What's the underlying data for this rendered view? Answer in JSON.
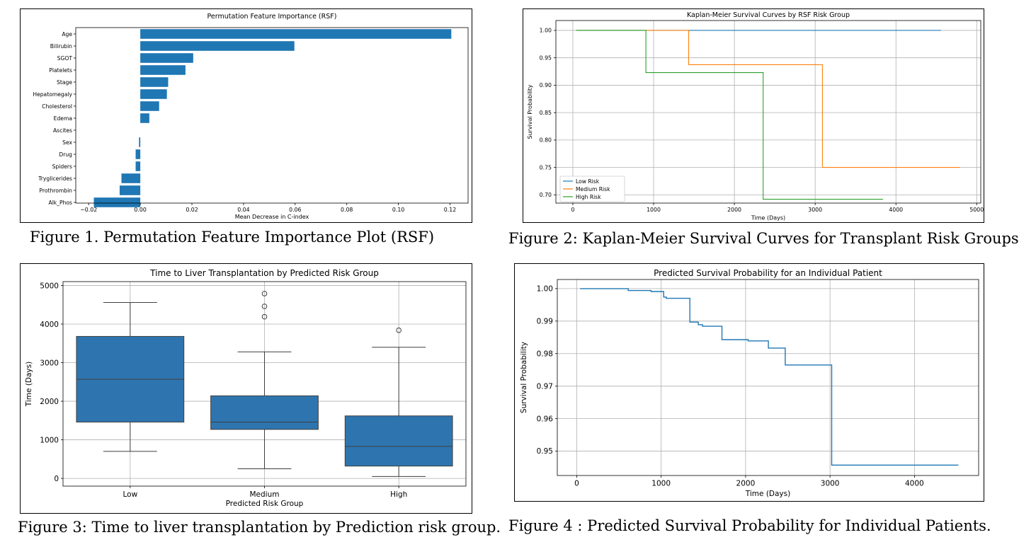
{
  "chart_data": [
    {
      "type": "bar",
      "orientation": "horizontal",
      "title": "Permutation Feature Importance (RSF)",
      "xlabel": "Mean Decrease in C-index",
      "ylabel": "",
      "xlim": [
        -0.025,
        0.127
      ],
      "xticks": [
        -0.02,
        0.0,
        0.02,
        0.04,
        0.06,
        0.08,
        0.1,
        0.12
      ],
      "xtick_labels": [
        "−0.02",
        "0.00",
        "0.02",
        "0.04",
        "0.06",
        "0.08",
        "0.10",
        "0.12"
      ],
      "categories": [
        "Age",
        "Bilirubin",
        "SGOT",
        "Platelets",
        "Stage",
        "Hepatomegaly",
        "Cholesterol",
        "Edema",
        "Ascites",
        "Sex",
        "Drug",
        "Spiders",
        "Tryglicerides",
        "Prothrombin",
        "Alk_Phos"
      ],
      "values": [
        0.1205,
        0.0597,
        0.0205,
        0.0175,
        0.0108,
        0.0103,
        0.0073,
        0.0035,
        0.0,
        -0.0005,
        -0.0018,
        -0.0018,
        -0.0073,
        -0.008,
        -0.018
      ],
      "color": "#1f77b4",
      "grid": false,
      "caption": "Figure 1. Permutation Feature Importance Plot (RSF)"
    },
    {
      "type": "line",
      "step": true,
      "title": "Kaplan-Meier Survival Curves by RSF Risk Group",
      "xlabel": "Time (Days)",
      "ylabel": "Survival Probability",
      "xlim": [
        -210,
        5050
      ],
      "ylim": [
        0.685,
        1.018
      ],
      "xticks": [
        0,
        1000,
        2000,
        3000,
        4000,
        5000
      ],
      "yticks": [
        0.7,
        0.75,
        0.8,
        0.85,
        0.9,
        0.95,
        1.0
      ],
      "ytick_labels": [
        "0.70",
        "0.75",
        "0.80",
        "0.85",
        "0.90",
        "0.95",
        "1.00"
      ],
      "grid": true,
      "legend_position": "lower-left",
      "series": [
        {
          "name": "Low Risk",
          "color": "#1f77b4",
          "x": [
            41,
            4556
          ],
          "y": [
            1.0,
            1.0
          ]
        },
        {
          "name": "Medium Risk",
          "color": "#ff7f0e",
          "x": [
            41,
            1434,
            1434,
            3090,
            3090,
            4795
          ],
          "y": [
            1.0,
            1.0,
            0.9375,
            0.9375,
            0.75,
            0.75
          ]
        },
        {
          "name": "High Risk",
          "color": "#2ca02c",
          "x": [
            41,
            904,
            904,
            2356,
            2356,
            3839
          ],
          "y": [
            1.0,
            1.0,
            0.923,
            0.923,
            0.692,
            0.692
          ]
        }
      ],
      "caption": "Figure 2: Kaplan-Meier Survival Curves for Transplant Risk Groups"
    },
    {
      "type": "box",
      "title": "Time to Liver Transplantation by Predicted Risk Group",
      "xlabel": "Predicted Risk Group",
      "ylabel": "Time (Days)",
      "ylim": [
        -200,
        5100
      ],
      "yticks": [
        0,
        1000,
        2000,
        3000,
        4000,
        5000
      ],
      "grid": true,
      "color": "#2e75b0",
      "categories": [
        "Low",
        "Medium",
        "High"
      ],
      "boxes": [
        {
          "whisker_low": 700,
          "q1": 1460,
          "median": 2570,
          "q3": 3680,
          "whisker_high": 4560,
          "outliers": []
        },
        {
          "whisker_low": 250,
          "q1": 1270,
          "median": 1460,
          "q3": 2140,
          "whisker_high": 3280,
          "outliers": [
            4190,
            4460,
            4790
          ]
        },
        {
          "whisker_low": 50,
          "q1": 320,
          "median": 830,
          "q3": 1620,
          "whisker_high": 3400,
          "outliers": [
            3840
          ]
        }
      ],
      "caption": "Figure 3: Time to liver transplantation by Prediction risk group."
    },
    {
      "type": "line",
      "step": true,
      "title": "Predicted Survival Probability for an Individual Patient",
      "xlabel": "Time (Days)",
      "ylabel": "Survival Probability",
      "xlim": [
        -230,
        4760
      ],
      "ylim": [
        0.9425,
        1.0028
      ],
      "xticks": [
        0,
        1000,
        2000,
        3000,
        4000
      ],
      "yticks": [
        0.95,
        0.96,
        0.97,
        0.98,
        0.99,
        1.0
      ],
      "ytick_labels": [
        "0.95",
        "0.96",
        "0.97",
        "0.98",
        "0.99",
        "1.00"
      ],
      "grid": true,
      "series": [
        {
          "color": "#1f77b4",
          "x": [
            40,
            610,
            610,
            880,
            880,
            1030,
            1030,
            1060,
            1060,
            1340,
            1340,
            1440,
            1440,
            1490,
            1490,
            1720,
            1720,
            2030,
            2030,
            2270,
            2270,
            2470,
            2470,
            3020,
            3020,
            4520
          ],
          "y": [
            1.0,
            1.0,
            0.9994,
            0.9994,
            0.9991,
            0.9991,
            0.9974,
            0.9974,
            0.997,
            0.997,
            0.9897,
            0.9897,
            0.9889,
            0.9889,
            0.9884,
            0.9884,
            0.9843,
            0.9843,
            0.9839,
            0.9839,
            0.9817,
            0.9817,
            0.9765,
            0.9765,
            0.9457,
            0.9457
          ]
        }
      ],
      "caption": "Figure 4 : Predicted Survival Probability for Individual Patients."
    }
  ]
}
